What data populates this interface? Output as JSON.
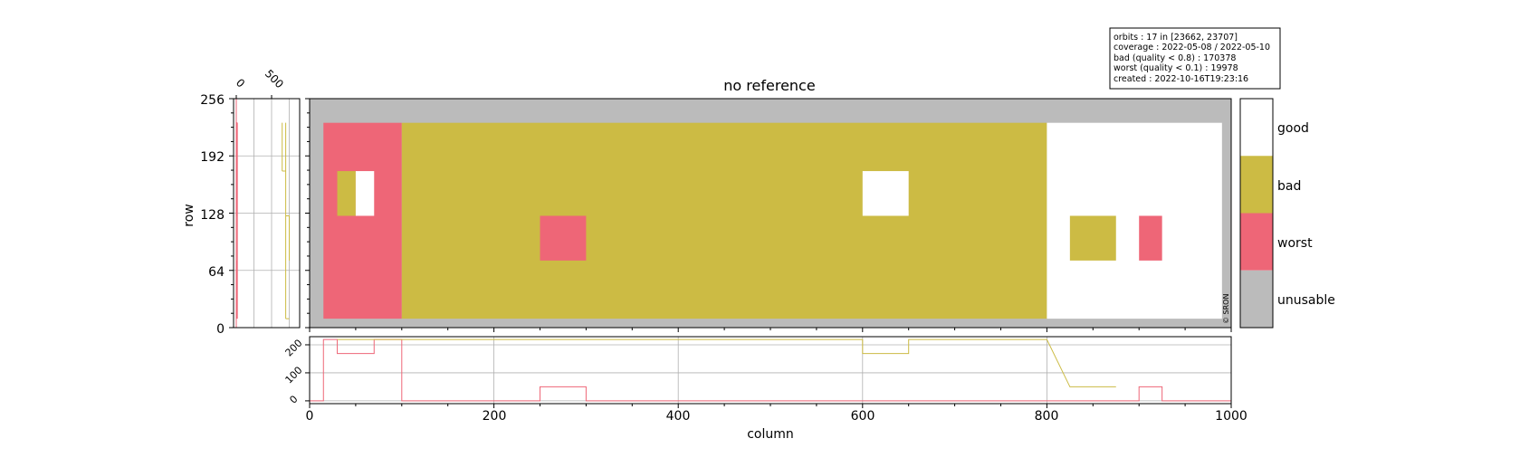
{
  "chart_data": {
    "type": "heatmap",
    "title": "no reference",
    "xlabel": "column",
    "ylabel": "row",
    "xlim": [
      0,
      1000
    ],
    "ylim": [
      0,
      256
    ],
    "x_ticks": [
      0,
      200,
      400,
      600,
      800,
      1000
    ],
    "y_ticks": [
      0,
      64,
      128,
      192,
      256
    ],
    "categories": [
      {
        "name": "unusable",
        "color": "#BBBBBB"
      },
      {
        "name": "worst",
        "color": "#EE6677"
      },
      {
        "name": "bad",
        "color": "#CCBB44"
      },
      {
        "name": "good",
        "color": "#FFFFFF"
      }
    ],
    "regions": [
      {
        "x": [
          0,
          1000
        ],
        "y": [
          0,
          256
        ],
        "class": "unusable"
      },
      {
        "x": [
          15,
          100
        ],
        "y": [
          10,
          229
        ],
        "class": "worst"
      },
      {
        "x": [
          100,
          800
        ],
        "y": [
          10,
          229
        ],
        "class": "bad"
      },
      {
        "x": [
          800,
          990
        ],
        "y": [
          10,
          229
        ],
        "class": "good"
      },
      {
        "x": [
          30,
          50
        ],
        "y": [
          125,
          175
        ],
        "class": "bad"
      },
      {
        "x": [
          50,
          70
        ],
        "y": [
          125,
          175
        ],
        "class": "good"
      },
      {
        "x": [
          250,
          300
        ],
        "y": [
          75,
          125
        ],
        "class": "worst"
      },
      {
        "x": [
          600,
          650
        ],
        "y": [
          125,
          175
        ],
        "class": "good"
      },
      {
        "x": [
          825,
          875
        ],
        "y": [
          75,
          125
        ],
        "class": "bad"
      },
      {
        "x": [
          900,
          925
        ],
        "y": [
          75,
          125
        ],
        "class": "worst"
      }
    ],
    "side_panel": {
      "x_ticks": [
        0,
        500
      ],
      "x_grid": [
        0,
        250,
        500,
        750
      ],
      "y_grid": [
        64,
        128,
        192
      ],
      "series": [
        {
          "color": "#EE6677",
          "steps": [
            [
              0,
              256,
              0
            ],
            [
              10,
              229,
              15
            ],
            [
              229,
              256,
              0
            ],
            [
              175,
              229,
              9
            ],
            [
              125,
              175,
              9
            ],
            [
              75,
              125,
              14
            ],
            [
              10,
              75,
              9
            ]
          ]
        },
        {
          "color": "#CCBB44",
          "steps": [
            [
              10,
              229,
              700
            ],
            [
              75,
              125,
              750
            ],
            [
              125,
              175,
              700
            ],
            [
              175,
              229,
              650
            ]
          ]
        }
      ]
    },
    "bottom_panel": {
      "y_ticks": [
        0,
        100,
        200
      ],
      "ylim": [
        -10,
        229
      ],
      "series": [
        {
          "color": "#EE6677",
          "steps": [
            [
              0,
              15,
              0
            ],
            [
              15,
              30,
              219
            ],
            [
              30,
              70,
              169
            ],
            [
              70,
              100,
              219
            ],
            [
              100,
              250,
              0
            ],
            [
              250,
              300,
              50
            ],
            [
              300,
              900,
              0
            ],
            [
              900,
              925,
              50
            ],
            [
              925,
              1000,
              0
            ]
          ]
        },
        {
          "color": "#CCBB44",
          "steps": [
            [
              30,
              50,
              219
            ],
            [
              50,
              600,
              219
            ],
            [
              600,
              650,
              169
            ],
            [
              650,
              800,
              219
            ],
            [
              825,
              875,
              50
            ]
          ]
        }
      ]
    }
  },
  "colorbar": {
    "labels": [
      "good",
      "bad",
      "worst",
      "unusable"
    ]
  },
  "info_box": {
    "lines": [
      "orbits : 17 in [23662, 23707]",
      "coverage : 2022-05-08 / 2022-05-10",
      "bad (quality < 0.8) : 170378",
      "worst (quality < 0.1) : 19978",
      "created : 2022-10-16T19:23:16"
    ]
  },
  "copyright": "© SRON"
}
